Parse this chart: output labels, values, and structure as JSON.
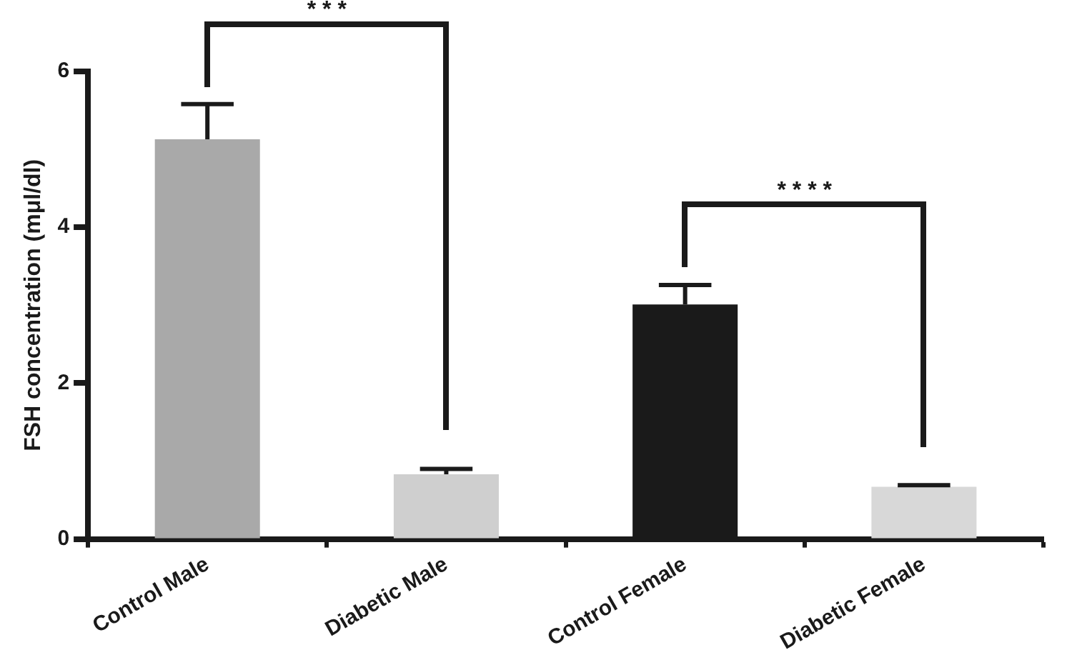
{
  "chart_data": {
    "type": "bar",
    "ylabel": "FSH concentration (mμl/dl)",
    "categories": [
      "Control Male",
      "Diabetic Male",
      "Control Female",
      "Diabetic Female"
    ],
    "values": [
      5.13,
      0.83,
      3.01,
      0.67
    ],
    "errors": [
      [
        5.13,
        5.58
      ],
      [
        0.83,
        0.9
      ],
      [
        3.01,
        3.26
      ],
      [
        0.67,
        0.69
      ]
    ],
    "colors": [
      "#a9a9a9",
      "#cfcfcf",
      "#1a1a1a",
      "#d8d8d8"
    ],
    "ylim": [
      0,
      6
    ],
    "yticks": [
      0,
      2,
      4,
      6
    ],
    "grid": false,
    "legend": false,
    "annotations": [
      "* * *",
      "* * * *"
    ]
  }
}
